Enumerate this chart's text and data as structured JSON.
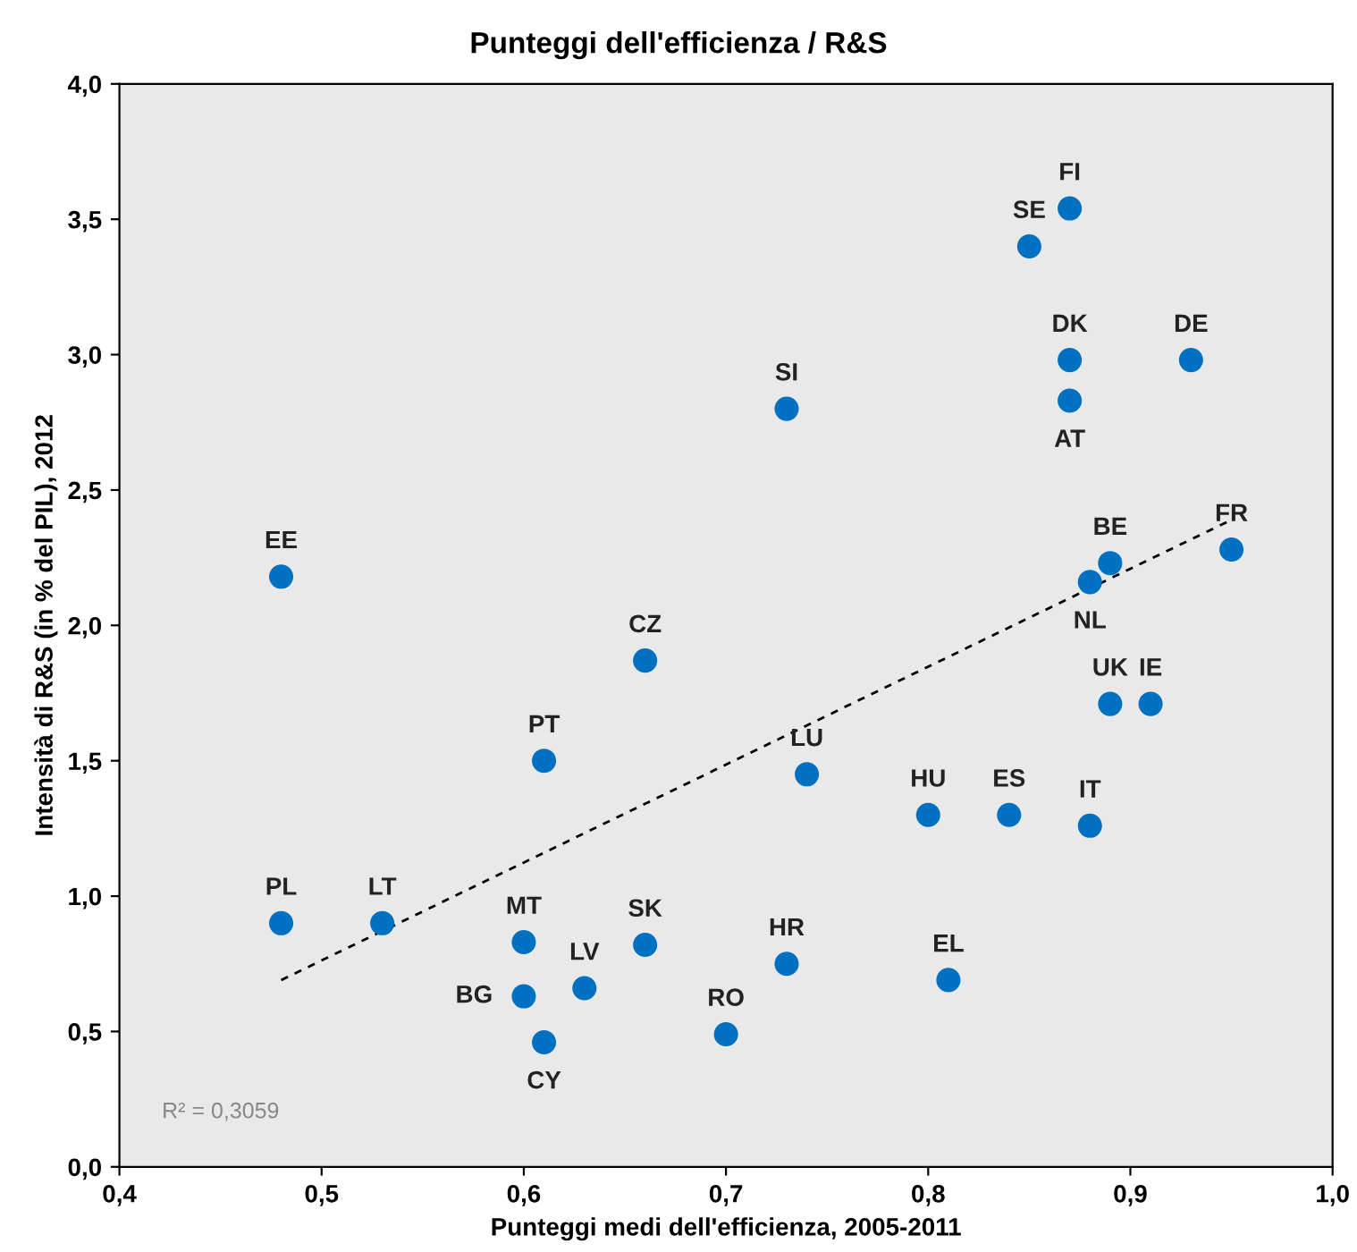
{
  "chart_data": {
    "type": "scatter",
    "title": "Punteggi dell'efficienza / R&S",
    "xlabel": "Punteggi medi dell'efficienza, 2005-2011",
    "ylabel": "Intensità di R&S (in % del PIL), 2012",
    "xlim": [
      0.4,
      1.0
    ],
    "ylim": [
      0,
      4.0
    ],
    "xticks": [
      {
        "value": 0.4,
        "label": "0,4"
      },
      {
        "value": 0.5,
        "label": "0,5"
      },
      {
        "value": 0.6,
        "label": "0,6"
      },
      {
        "value": 0.7,
        "label": "0,7"
      },
      {
        "value": 0.8,
        "label": "0,8"
      },
      {
        "value": 0.9,
        "label": "0,9"
      },
      {
        "value": 1.0,
        "label": "1,0"
      }
    ],
    "yticks": [
      {
        "value": 0,
        "label": "0,0"
      },
      {
        "value": 0.5,
        "label": "0,5"
      },
      {
        "value": 1.0,
        "label": "1,0"
      },
      {
        "value": 1.5,
        "label": "1,5"
      },
      {
        "value": 2.0,
        "label": "2,0"
      },
      {
        "value": 2.5,
        "label": "2,5"
      },
      {
        "value": 3.0,
        "label": "3,0"
      },
      {
        "value": 3.5,
        "label": "3,5"
      },
      {
        "value": 4.0,
        "label": "4,0"
      }
    ],
    "grid": false,
    "legend": false,
    "marker": "circle",
    "series": [
      {
        "color": "#0070c0",
        "x": [
          0.87,
          0.85,
          0.87,
          0.87,
          0.93,
          0.73,
          0.95,
          0.89,
          0.88,
          0.48,
          0.66,
          0.89,
          0.91,
          0.61,
          0.74,
          0.8,
          0.84,
          0.88,
          0.48,
          0.53,
          0.6,
          0.66,
          0.63,
          0.6,
          0.73,
          0.81,
          0.7,
          0.61
        ],
        "values": [
          3.54,
          3.4,
          2.98,
          2.83,
          2.98,
          2.8,
          2.28,
          2.23,
          2.16,
          2.18,
          1.87,
          1.71,
          1.71,
          1.5,
          1.45,
          1.3,
          1.3,
          1.26,
          0.9,
          0.9,
          0.83,
          0.82,
          0.66,
          0.63,
          0.75,
          0.69,
          0.49,
          0.46
        ]
      },
      {
        "type": "line",
        "color": "#000000",
        "line_style": "dashed",
        "marker": "none",
        "x": [
          0.48,
          0.95
        ],
        "values": [
          0.69,
          2.39
        ]
      }
    ],
    "annotations": [
      {
        "text": "FI",
        "x": 0.87,
        "y": 3.54
      },
      {
        "text": "SE",
        "x": 0.85,
        "y": 3.4
      },
      {
        "text": "DK",
        "x": 0.87,
        "y": 2.98
      },
      {
        "text": "AT",
        "x": 0.87,
        "y": 2.83
      },
      {
        "text": "DE",
        "x": 0.93,
        "y": 2.98
      },
      {
        "text": "SI",
        "x": 0.73,
        "y": 2.8
      },
      {
        "text": "FR",
        "x": 0.95,
        "y": 2.28
      },
      {
        "text": "BE",
        "x": 0.89,
        "y": 2.23
      },
      {
        "text": "NL",
        "x": 0.88,
        "y": 2.16
      },
      {
        "text": "EE",
        "x": 0.48,
        "y": 2.18
      },
      {
        "text": "CZ",
        "x": 0.66,
        "y": 1.87
      },
      {
        "text": "UK",
        "x": 0.89,
        "y": 1.71
      },
      {
        "text": "IE",
        "x": 0.91,
        "y": 1.71
      },
      {
        "text": "PT",
        "x": 0.61,
        "y": 1.5
      },
      {
        "text": "LU",
        "x": 0.74,
        "y": 1.45
      },
      {
        "text": "HU",
        "x": 0.8,
        "y": 1.3
      },
      {
        "text": "ES",
        "x": 0.84,
        "y": 1.3
      },
      {
        "text": "IT",
        "x": 0.88,
        "y": 1.26
      },
      {
        "text": "PL",
        "x": 0.48,
        "y": 0.9
      },
      {
        "text": "LT",
        "x": 0.53,
        "y": 0.9
      },
      {
        "text": "MT",
        "x": 0.6,
        "y": 0.83
      },
      {
        "text": "SK",
        "x": 0.66,
        "y": 0.82
      },
      {
        "text": "LV",
        "x": 0.63,
        "y": 0.66
      },
      {
        "text": "BG",
        "x": 0.6,
        "y": 0.63
      },
      {
        "text": "HR",
        "x": 0.73,
        "y": 0.75
      },
      {
        "text": "EL",
        "x": 0.81,
        "y": 0.69
      },
      {
        "text": "RO",
        "x": 0.7,
        "y": 0.49
      },
      {
        "text": "CY",
        "x": 0.61,
        "y": 0.46
      },
      "R² = 0,3059"
    ]
  }
}
